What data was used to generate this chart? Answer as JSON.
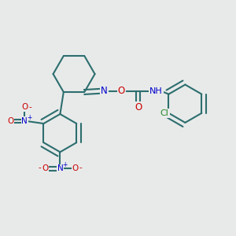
{
  "bg_color": "#e8eaea",
  "bond_color": "#2d6e6e",
  "bond_width": 1.5,
  "atom_colors": {
    "N": "#0000cc",
    "O": "#cc0000",
    "H": "#2d8080",
    "Cl": "#228822"
  },
  "font_size": 8.5,
  "figsize": [
    3.0,
    3.0
  ],
  "dpi": 100
}
